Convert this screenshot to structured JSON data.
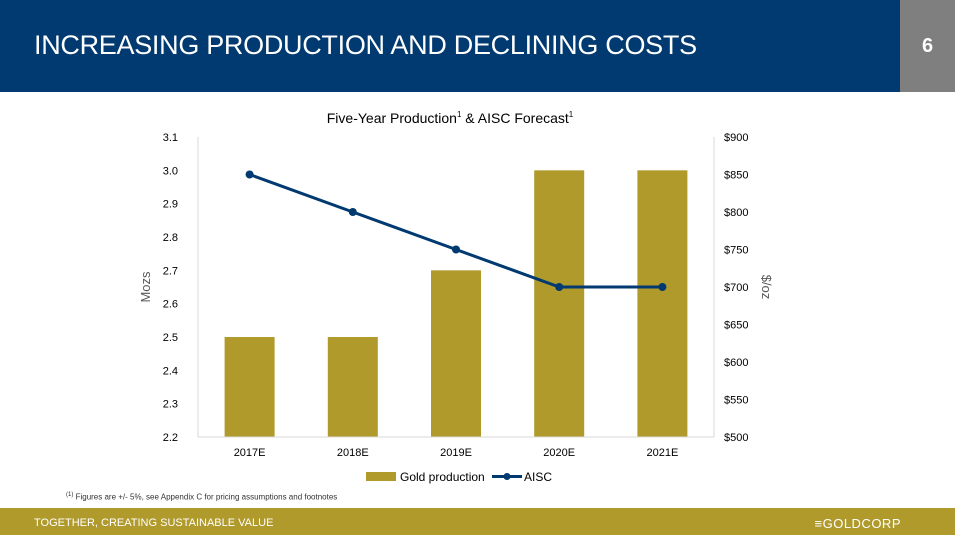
{
  "header": {
    "title": "INCREASING PRODUCTION AND DECLINING COSTS",
    "page_number": "6",
    "color": "#003a70"
  },
  "footer": {
    "tagline": "TOGETHER, CREATING SUSTAINABLE VALUE",
    "logo": "GOLDCORP",
    "color": "#b09a2c"
  },
  "footnote": {
    "marker": "(1)",
    "text": "Figures are +/- 5%, see Appendix C for pricing assumptions and footnotes"
  },
  "chart_data": {
    "type": "bar+line",
    "title": "Five-Year Production",
    "title_sup": "1",
    "title_mid": " & AISC Forecast",
    "categories": [
      "2017E",
      "2018E",
      "2019E",
      "2020E",
      "2021E"
    ],
    "ylabel_left": "Mozs",
    "ylabel_right": "$/oz",
    "ylim_left": [
      2.2,
      3.1
    ],
    "yticks_left": [
      "2.2",
      "2.3",
      "2.4",
      "2.5",
      "2.6",
      "2.7",
      "2.8",
      "2.9",
      "3.0",
      "3.1"
    ],
    "ylim_right": [
      500,
      900
    ],
    "yticks_right": [
      "$500",
      "$550",
      "$600",
      "$650",
      "$700",
      "$750",
      "$800",
      "$850",
      "$900"
    ],
    "series": [
      {
        "name": "Gold production",
        "type": "bar",
        "axis": "left",
        "color": "#b09a2c",
        "values": [
          2.5,
          2.5,
          2.7,
          3.0,
          3.0
        ]
      },
      {
        "name": "AISC",
        "type": "line",
        "axis": "right",
        "color": "#003a70",
        "values": [
          850,
          800,
          750,
          700,
          700
        ]
      }
    ],
    "legend": "bottom",
    "grid": false
  }
}
